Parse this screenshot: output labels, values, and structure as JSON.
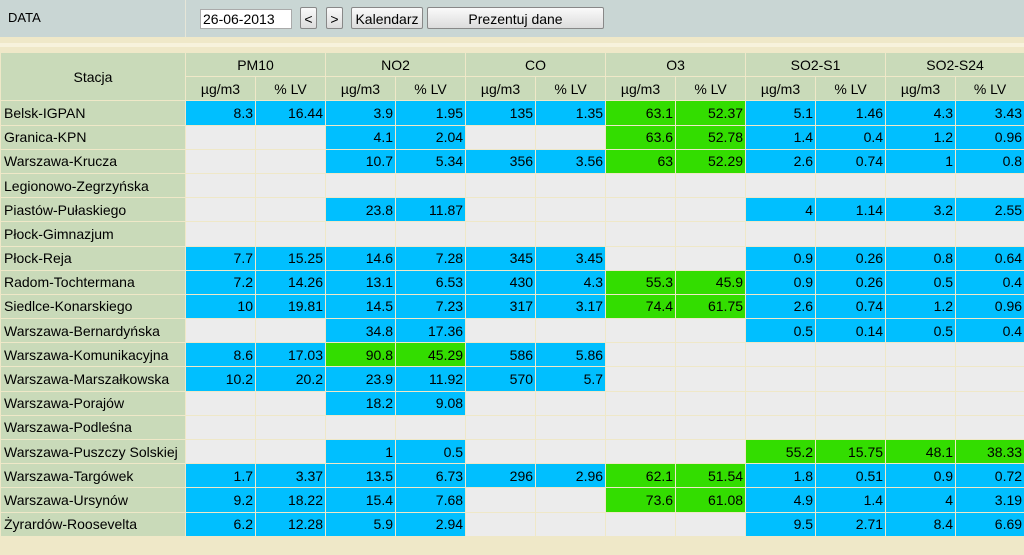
{
  "toolbar": {
    "label": "DATA",
    "date": "26-06-2013",
    "buttons": [
      "<",
      ">",
      "Kalendarz",
      "Prezentuj dane"
    ]
  },
  "table": {
    "station_header": "Stacja",
    "pollutants": [
      "PM10",
      "NO2",
      "CO",
      "O3",
      "SO2-S1",
      "SO2-S24"
    ],
    "units": [
      "µg/m3",
      "% LV"
    ],
    "rows": [
      {
        "station": "Belsk-IGPAN",
        "values": [
          8.3,
          16.44,
          3.9,
          1.95,
          135,
          1.35,
          63.1,
          52.37,
          5.1,
          1.46,
          4.3,
          3.43
        ],
        "colors": [
          "#00bfff",
          "#00bfff",
          "#00bfff",
          "#33dd00",
          "#00bfff",
          "#00bfff"
        ]
      },
      {
        "station": "Granica-KPN",
        "values": [
          null,
          null,
          4.1,
          2.04,
          null,
          null,
          63.6,
          52.78,
          1.4,
          0.4,
          1.2,
          0.96
        ],
        "colors": [
          null,
          "#00bfff",
          null,
          "#33dd00",
          "#00bfff",
          "#00bfff"
        ]
      },
      {
        "station": "Warszawa-Krucza",
        "values": [
          null,
          null,
          10.7,
          5.34,
          356,
          3.56,
          63,
          52.29,
          2.6,
          0.74,
          1,
          0.8
        ],
        "colors": [
          null,
          "#00bfff",
          "#00bfff",
          "#33dd00",
          "#00bfff",
          "#00bfff"
        ]
      },
      {
        "station": "Legionowo-Zegrzyńska",
        "values": [
          null,
          null,
          null,
          null,
          null,
          null,
          null,
          null,
          null,
          null,
          null,
          null
        ],
        "colors": [
          null,
          null,
          null,
          null,
          null,
          null
        ]
      },
      {
        "station": "Piastów-Pułaskiego",
        "values": [
          null,
          null,
          23.8,
          11.87,
          null,
          null,
          null,
          null,
          4,
          1.14,
          3.2,
          2.55
        ],
        "colors": [
          null,
          "#00bfff",
          null,
          null,
          "#00bfff",
          "#00bfff"
        ]
      },
      {
        "station": "Płock-Gimnazjum",
        "values": [
          null,
          null,
          null,
          null,
          null,
          null,
          null,
          null,
          null,
          null,
          null,
          null
        ],
        "colors": [
          null,
          null,
          null,
          null,
          null,
          null
        ]
      },
      {
        "station": "Płock-Reja",
        "values": [
          7.7,
          15.25,
          14.6,
          7.28,
          345,
          3.45,
          null,
          null,
          0.9,
          0.26,
          0.8,
          0.64
        ],
        "colors": [
          "#00bfff",
          "#00bfff",
          "#00bfff",
          null,
          "#00bfff",
          "#00bfff"
        ]
      },
      {
        "station": "Radom-Tochtermana",
        "values": [
          7.2,
          14.26,
          13.1,
          6.53,
          430,
          4.3,
          55.3,
          45.9,
          0.9,
          0.26,
          0.5,
          0.4
        ],
        "colors": [
          "#00bfff",
          "#00bfff",
          "#00bfff",
          "#33dd00",
          "#00bfff",
          "#00bfff"
        ]
      },
      {
        "station": "Siedlce-Konarskiego",
        "values": [
          10,
          19.81,
          14.5,
          7.23,
          317,
          3.17,
          74.4,
          61.75,
          2.6,
          0.74,
          1.2,
          0.96
        ],
        "colors": [
          "#00bfff",
          "#00bfff",
          "#00bfff",
          "#33dd00",
          "#00bfff",
          "#00bfff"
        ]
      },
      {
        "station": "Warszawa-Bernardyńska",
        "values": [
          null,
          null,
          34.8,
          17.36,
          null,
          null,
          null,
          null,
          0.5,
          0.14,
          0.5,
          0.4
        ],
        "colors": [
          null,
          "#00bfff",
          null,
          null,
          "#00bfff",
          "#00bfff"
        ]
      },
      {
        "station": "Warszawa-Komunikacyjna",
        "values": [
          8.6,
          17.03,
          90.8,
          45.29,
          586,
          5.86,
          null,
          null,
          null,
          null,
          null,
          null
        ],
        "colors": [
          "#00bfff",
          "#33dd00",
          "#00bfff",
          null,
          null,
          null
        ]
      },
      {
        "station": "Warszawa-Marszałkowska",
        "values": [
          10.2,
          20.2,
          23.9,
          11.92,
          570,
          5.7,
          null,
          null,
          null,
          null,
          null,
          null
        ],
        "colors": [
          "#00bfff",
          "#00bfff",
          "#00bfff",
          null,
          null,
          null
        ]
      },
      {
        "station": "Warszawa-Porajów",
        "values": [
          null,
          null,
          18.2,
          9.08,
          null,
          null,
          null,
          null,
          null,
          null,
          null,
          null
        ],
        "colors": [
          null,
          "#00bfff",
          null,
          null,
          null,
          null
        ]
      },
      {
        "station": "Warszawa-Podleśna",
        "values": [
          null,
          null,
          null,
          null,
          null,
          null,
          null,
          null,
          null,
          null,
          null,
          null
        ],
        "colors": [
          null,
          null,
          null,
          null,
          null,
          null
        ]
      },
      {
        "station": "Warszawa-Puszczy Solskiej",
        "values": [
          null,
          null,
          1,
          0.5,
          null,
          null,
          null,
          null,
          55.2,
          15.75,
          48.1,
          38.33
        ],
        "colors": [
          null,
          "#00bfff",
          null,
          null,
          "#33dd00",
          "#33dd00"
        ]
      },
      {
        "station": "Warszawa-Targówek",
        "values": [
          1.7,
          3.37,
          13.5,
          6.73,
          296,
          2.96,
          62.1,
          51.54,
          1.8,
          0.51,
          0.9,
          0.72
        ],
        "colors": [
          "#00bfff",
          "#00bfff",
          "#00bfff",
          "#33dd00",
          "#00bfff",
          "#00bfff"
        ]
      },
      {
        "station": "Warszawa-Ursynów",
        "values": [
          9.2,
          18.22,
          15.4,
          7.68,
          null,
          null,
          73.6,
          61.08,
          4.9,
          1.4,
          4,
          3.19
        ],
        "colors": [
          "#00bfff",
          "#00bfff",
          null,
          "#33dd00",
          "#00bfff",
          "#00bfff"
        ]
      },
      {
        "station": "Żyrardów-Roosevelta",
        "values": [
          6.2,
          12.28,
          5.9,
          2.94,
          null,
          null,
          null,
          null,
          9.5,
          2.71,
          8.4,
          6.69
        ],
        "colors": [
          "#00bfff",
          "#00bfff",
          null,
          null,
          "#00bfff",
          "#00bfff"
        ]
      }
    ]
  }
}
